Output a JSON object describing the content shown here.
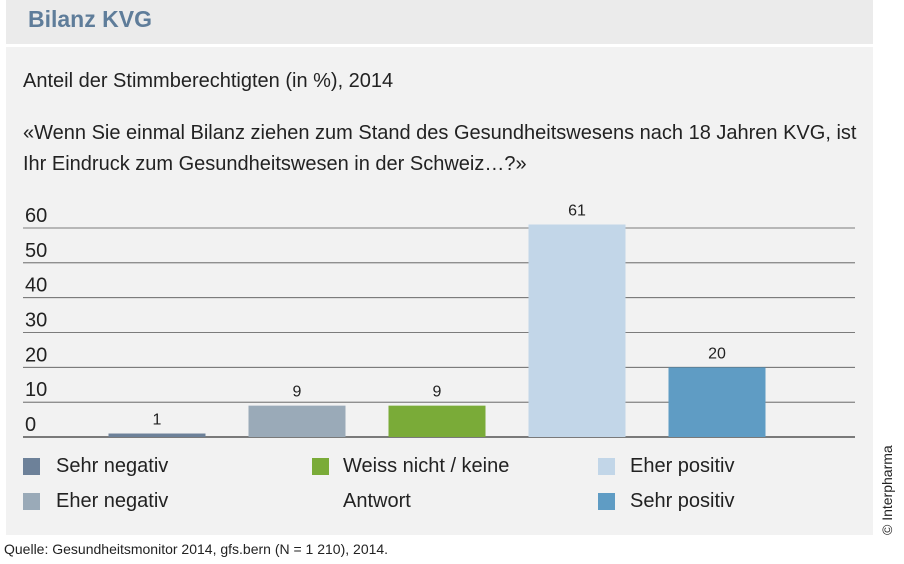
{
  "header": {
    "title": "Bilanz KVG"
  },
  "subtitle": "Anteil der Stimmberechtigten (in %), 2014",
  "question": "«Wenn Sie einmal Bilanz ziehen zum Stand des Gesundheitswesens nach 18 Jahren KVG, ist Ihr Eindruck zum Gesundheitswesen in der Schweiz…?»",
  "chart_data": {
    "type": "bar",
    "categories": [
      "Sehr negativ",
      "Eher negativ",
      "Weiss nicht / keine Antwort",
      "Eher positiv",
      "Sehr positiv"
    ],
    "values": [
      1,
      9,
      9,
      61,
      20
    ],
    "colors": [
      "#6d8199",
      "#9aaab8",
      "#7aab38",
      "#c2d6e8",
      "#5f9cc4"
    ],
    "yticks": [
      0,
      10,
      20,
      30,
      40,
      50,
      60
    ],
    "ylim": [
      0,
      60
    ],
    "grid": true,
    "legend_position": "bottom"
  },
  "legend": [
    {
      "label": "Sehr negativ",
      "color": "#6d8199"
    },
    {
      "label": "Eher negativ",
      "color": "#9aaab8"
    },
    {
      "label": "Weiss nicht / keine",
      "label2": "Antwort",
      "color": "#7aab38"
    },
    {
      "label": "Eher positiv",
      "color": "#c2d6e8"
    },
    {
      "label": "Sehr positiv",
      "color": "#5f9cc4"
    }
  ],
  "source": "Quelle: Gesundheitsmonitor 2014, gfs.bern (N = 1 210), 2014.",
  "copyright": "© Interpharma"
}
